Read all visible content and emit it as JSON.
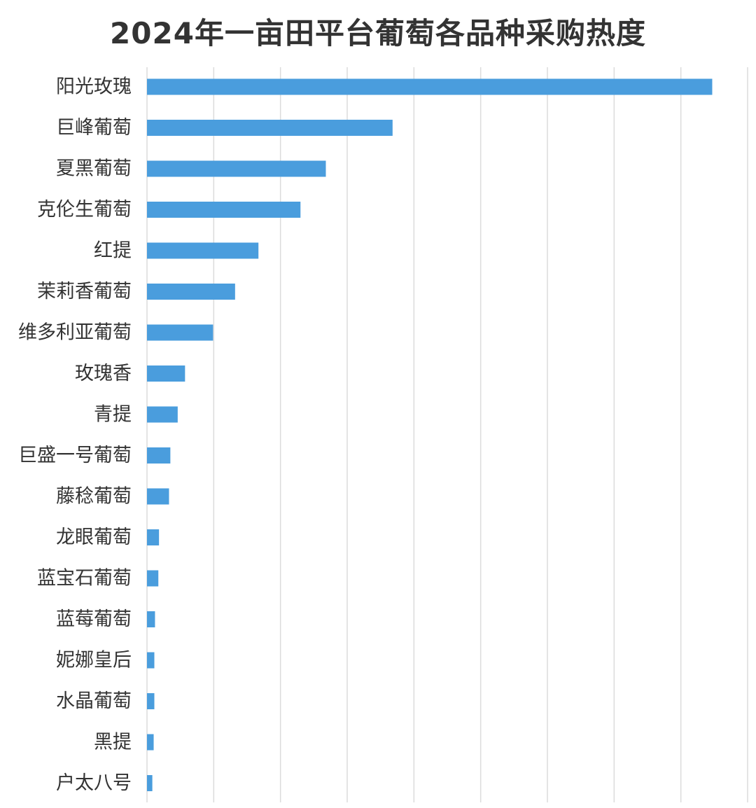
{
  "chart_data": {
    "type": "bar",
    "orientation": "horizontal",
    "title": "2024年一亩田平台葡萄各品种采购热度",
    "xlabel": "",
    "ylabel": "",
    "grid": true,
    "xlim": [
      0,
      9
    ],
    "categories": [
      "阳光玫瑰",
      "巨峰葡萄",
      "夏黑葡萄",
      "克伦生葡萄",
      "红提",
      "茉莉香葡萄",
      "维多利亚葡萄",
      "玫瑰香",
      "青提",
      "巨盛一号葡萄",
      "藤稔葡萄",
      "龙眼葡萄",
      "蓝宝石葡萄",
      "蓝莓葡萄",
      "妮娜皇后",
      "水晶葡萄",
      "黑提",
      "户太八号"
    ],
    "values": [
      8.47,
      3.68,
      2.68,
      2.3,
      1.67,
      1.32,
      0.99,
      0.57,
      0.46,
      0.35,
      0.33,
      0.18,
      0.17,
      0.12,
      0.11,
      0.11,
      0.1,
      0.08
    ],
    "bar_color": "#4a9ddd",
    "grid_color": "#dcdcdc"
  }
}
